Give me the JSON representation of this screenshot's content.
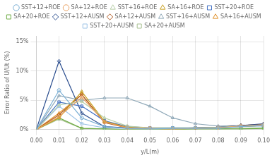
{
  "chart_data": {
    "type": "line",
    "xlabel": "y/L(m)",
    "ylabel": "Error Ratio of U/Ut (%)",
    "x": [
      0.0,
      0.01,
      0.02,
      0.03,
      0.04,
      0.05,
      0.06,
      0.07,
      0.08,
      0.09,
      0.1
    ],
    "xlim": [
      0.0,
      0.1
    ],
    "xticks": [
      {
        "value": 0.0,
        "label": "0.00"
      },
      {
        "value": 0.01,
        "label": "0.01"
      },
      {
        "value": 0.02,
        "label": "0.02"
      },
      {
        "value": 0.03,
        "label": "0.03"
      },
      {
        "value": 0.04,
        "label": "0.04"
      },
      {
        "value": 0.05,
        "label": "0.05"
      },
      {
        "value": 0.06,
        "label": "0.06"
      },
      {
        "value": 0.07,
        "label": "0.07"
      },
      {
        "value": 0.08,
        "label": "0.08"
      },
      {
        "value": 0.09,
        "label": "0.09"
      },
      {
        "value": 0.1,
        "label": "0.10"
      }
    ],
    "ylim": [
      0.0,
      0.16
    ],
    "yticks": [
      {
        "value": 0.0,
        "label": "0%"
      },
      {
        "value": 0.05,
        "label": "5%"
      },
      {
        "value": 0.1,
        "label": "10%"
      },
      {
        "value": 0.15,
        "label": "15%"
      }
    ],
    "grid": true,
    "legend": "top",
    "series": [
      {
        "name": "SST+12+ROE",
        "color": "#7bafd4",
        "marker": "circle",
        "values": [
          0.0,
          0.067,
          0.02,
          0.005,
          0.002,
          0.001,
          0.002,
          0.002,
          0.002,
          0.005,
          0.007
        ]
      },
      {
        "name": "SA+12+ROE",
        "color": "#e8a060",
        "marker": "circle",
        "values": [
          0.0,
          0.022,
          0.055,
          0.013,
          0.003,
          0.002,
          0.001,
          0.002,
          0.003,
          0.006,
          0.008
        ]
      },
      {
        "name": "SST+16+ROE",
        "color": "#b8cfa8",
        "marker": "triangle",
        "values": [
          0.0,
          0.042,
          0.048,
          0.02,
          0.006,
          0.003,
          0.003,
          0.003,
          0.004,
          0.006,
          0.008
        ]
      },
      {
        "name": "SA+16+ROE",
        "color": "#c8a020",
        "marker": "triangle",
        "values": [
          0.0,
          0.02,
          0.065,
          0.014,
          0.004,
          0.002,
          0.001,
          0.002,
          0.003,
          0.005,
          0.007
        ]
      },
      {
        "name": "SST+20+ROE",
        "color": "#4472c4",
        "marker": "square",
        "values": [
          0.0,
          0.047,
          0.04,
          0.015,
          0.005,
          0.003,
          0.003,
          0.003,
          0.004,
          0.006,
          0.008
        ]
      },
      {
        "name": "SA+20+ROE",
        "color": "#70ad47",
        "marker": "square",
        "values": [
          0.0,
          0.02,
          0.002,
          0.001,
          0.0,
          0.0,
          0.0,
          0.001,
          0.001,
          0.001,
          0.002
        ]
      },
      {
        "name": "SST+12+AUSM",
        "color": "#2e5090",
        "marker": "diamond",
        "values": [
          0.0,
          0.117,
          0.028,
          0.005,
          0.003,
          0.002,
          0.002,
          0.003,
          0.004,
          0.007,
          0.01
        ]
      },
      {
        "name": "SA+12+AUSM",
        "color": "#b05820",
        "marker": "diamond",
        "values": [
          0.0,
          0.025,
          0.06,
          0.012,
          0.003,
          0.002,
          0.001,
          0.003,
          0.004,
          0.007,
          0.009
        ]
      },
      {
        "name": "SST+16+AUSM",
        "color": "#8fa8b8",
        "marker": "triangle",
        "values": [
          0.0,
          0.058,
          0.05,
          0.054,
          0.054,
          0.04,
          0.02,
          0.01,
          0.006,
          0.007,
          0.009
        ]
      },
      {
        "name": "SA+16+AUSM",
        "color": "#e09028",
        "marker": "triangle",
        "values": [
          0.0,
          0.028,
          0.06,
          0.013,
          0.004,
          0.002,
          0.001,
          0.002,
          0.003,
          0.007,
          0.009
        ]
      },
      {
        "name": "SST+20+AUSM",
        "color": "#9dc3e6",
        "marker": "square",
        "values": [
          0.0,
          0.04,
          0.01,
          0.003,
          0.002,
          0.001,
          0.001,
          0.002,
          0.003,
          0.005,
          0.006
        ]
      },
      {
        "name": "SA+20+AUSM",
        "color": "#a8c090",
        "marker": "square",
        "values": [
          0.0,
          0.018,
          0.002,
          0.001,
          0.0,
          0.0,
          0.0,
          0.001,
          0.001,
          0.002,
          0.003
        ]
      }
    ]
  }
}
